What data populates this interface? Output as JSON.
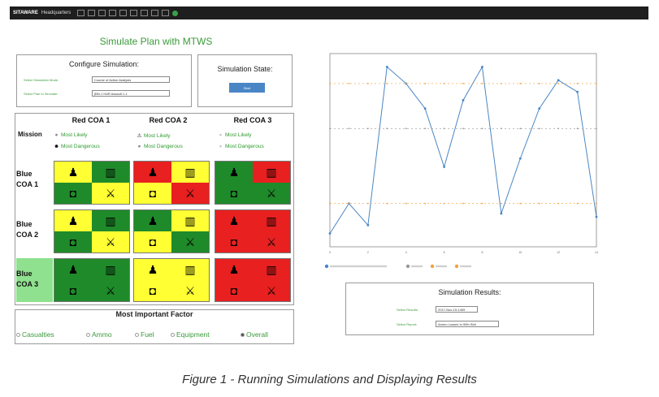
{
  "topbar": {
    "app_name": "SITAWARE",
    "subtitle": "Headquarters"
  },
  "title": "Simulate Plan with MTWS",
  "configure": {
    "title": "Configure Simulation:",
    "mode_label": "Select Simulation Mode:",
    "mode_value": "Course of Action Analysis",
    "plan_label": "Select Plan to Simulate:",
    "plan_value": "[BN-1 HAR Assault 1-1"
  },
  "state": {
    "title": "Simulation State:",
    "button": "Start"
  },
  "matrix": {
    "mission_label": "Mission",
    "columns": [
      "Red COA 1",
      "Red COA 2",
      "Red COA 3"
    ],
    "legend": {
      "col1": [
        "Most Likely",
        "Most Dangerous"
      ],
      "col2": [
        "Most Likely",
        "Most Dangerous"
      ],
      "col3": [
        "Most Likely",
        "Most Dangerous"
      ]
    },
    "rows": [
      {
        "l1": "Blue",
        "l2": "COA 1"
      },
      {
        "l1": "Blue",
        "l2": "COA 2"
      },
      {
        "l1": "Blue",
        "l2": "COA 3"
      }
    ],
    "cell_colors": [
      [
        [
          "yellow",
          "green",
          "green",
          "yellow"
        ],
        [
          "red",
          "yellow",
          "yellow",
          "red"
        ],
        [
          "green",
          "red",
          "green",
          "green"
        ]
      ],
      [
        [
          "yellow",
          "green",
          "green",
          "yellow"
        ],
        [
          "green",
          "yellow",
          "yellow",
          "green"
        ],
        [
          "red",
          "red",
          "red",
          "red"
        ]
      ],
      [
        [
          "green",
          "green",
          "green",
          "green"
        ],
        [
          "yellow",
          "yellow",
          "yellow",
          "yellow"
        ],
        [
          "red",
          "red",
          "red",
          "red"
        ]
      ]
    ],
    "cell_icons": [
      "person-icon",
      "ammo-icon",
      "fuel-icon",
      "crossed-swords-icon"
    ],
    "glyphs": {
      "person": "♟",
      "ammo": "▥",
      "fuel": "◘",
      "swords": "⚔",
      "warn": "⚠",
      "skull": "☻",
      "dot": "●"
    },
    "colors": {
      "yellow": "#ffff33",
      "green": "#1f8a2a",
      "red": "#e82020"
    }
  },
  "important_factor": {
    "title": "Most Important Factor",
    "options": [
      "Casualties",
      "Ammo",
      "Fuel",
      "Equipment",
      "Overall"
    ],
    "selected": "Overall"
  },
  "results": {
    "title": "Simulation Results:",
    "result_label": "Select Results:",
    "result_value": "2017-Nov-15-1459",
    "report_label": "Select Report:",
    "report_value": "Ammo Losses In 90th Sldr"
  },
  "caption": "Figure 1 - Running Simulations and Displaying Results",
  "chart_data": {
    "type": "line",
    "x": [
      0,
      1,
      2,
      3,
      4,
      5,
      6,
      7,
      8,
      9,
      10,
      11,
      12,
      13,
      14
    ],
    "series": [
      {
        "values": [
          0,
          18,
          5,
          100,
          90,
          75,
          40,
          80,
          100,
          12,
          45,
          75,
          92,
          85,
          10
        ],
        "color": "#4a86c5"
      },
      {
        "values": [
          63,
          63,
          63,
          63,
          63,
          63,
          63,
          63,
          63,
          63,
          63,
          63,
          63,
          63,
          63
        ],
        "color": "#999999"
      },
      {
        "values": [
          90,
          90,
          90,
          90,
          90,
          90,
          90,
          90,
          90,
          90,
          90,
          90,
          90,
          90,
          90
        ],
        "color": "#f0a040"
      },
      {
        "values": [
          18,
          18,
          18,
          18,
          18,
          18,
          18,
          18,
          18,
          18,
          18,
          18,
          18,
          18,
          18
        ],
        "color": "#f0a040"
      }
    ],
    "xlim": [
      0,
      14
    ],
    "ylim": [
      -8,
      108
    ],
    "x_ticks": [
      0,
      2,
      4,
      6,
      8,
      10,
      12,
      14
    ],
    "grid": false
  }
}
